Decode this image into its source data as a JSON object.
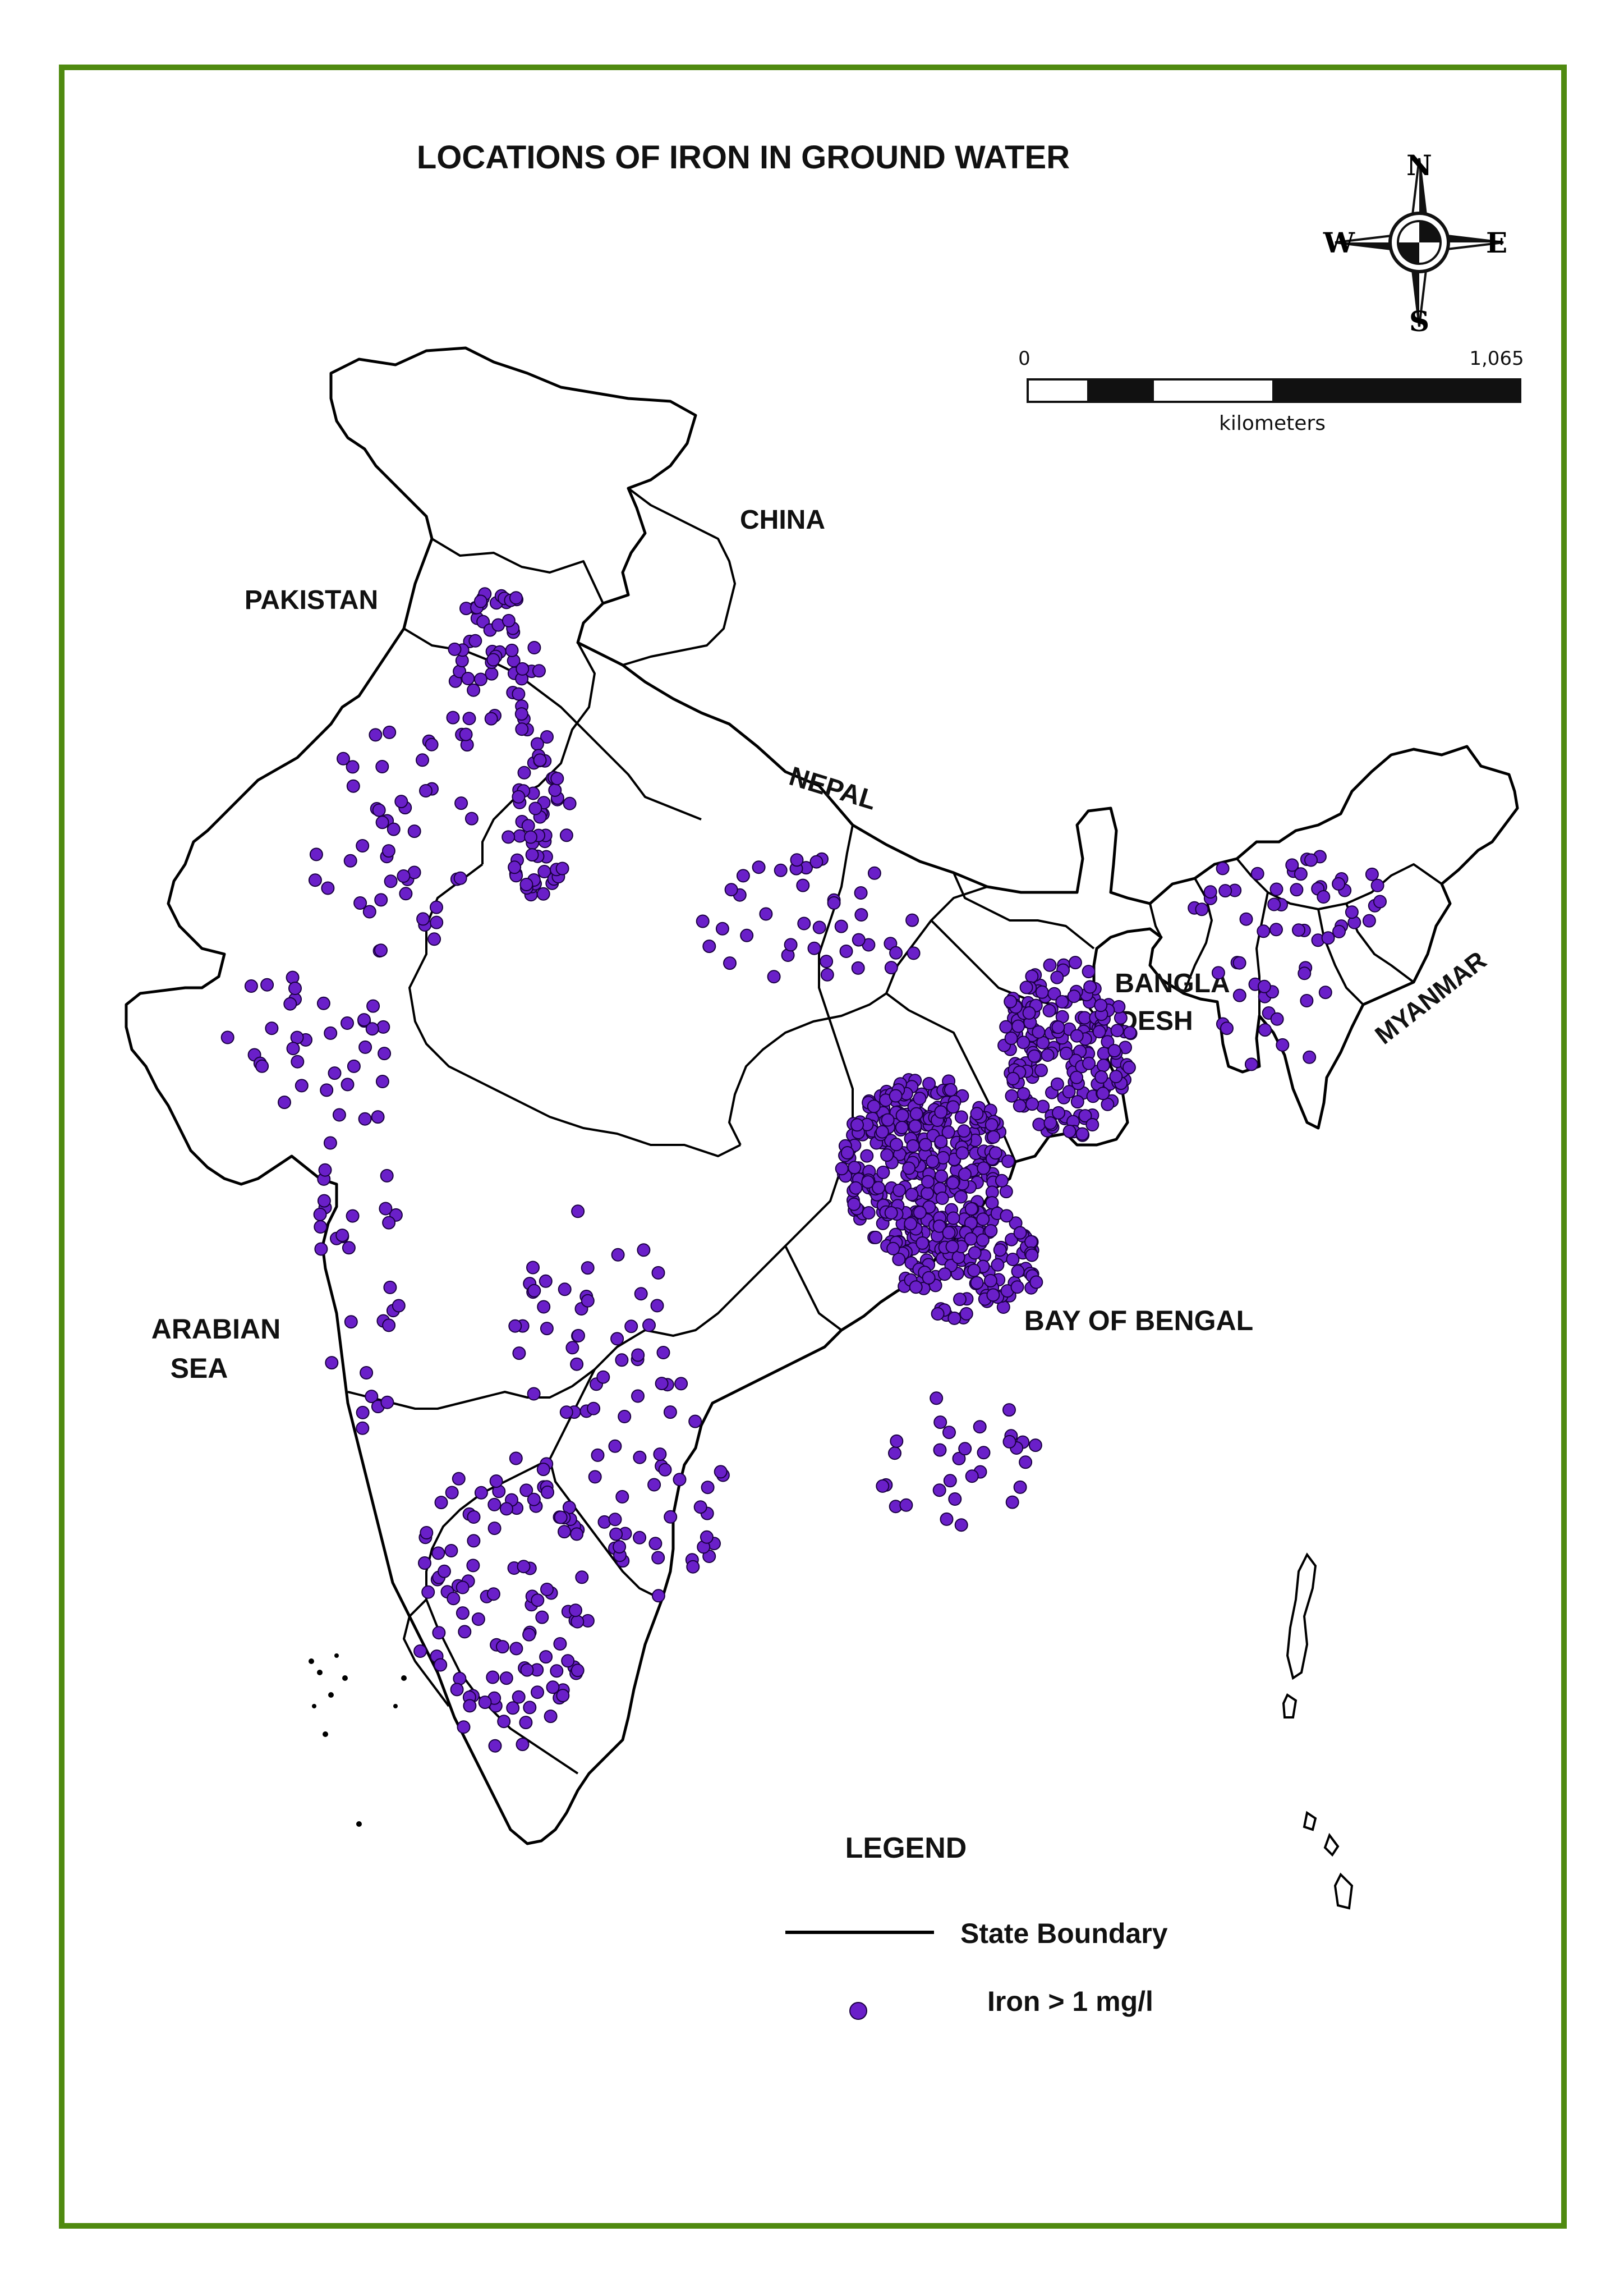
{
  "title": "LOCATIONS OF IRON IN GROUND WATER",
  "compass": {
    "north": "N",
    "south": "S",
    "east": "E",
    "west": "W",
    "icon": "compass-rose-icon"
  },
  "scale_bar": {
    "start": "0",
    "end": "1,065",
    "unit": "kilometers"
  },
  "regions": {
    "china": "CHINA",
    "pakistan": "PAKISTAN",
    "nepal": "NEPAL",
    "bangladesh_line1": "BANGLA",
    "bangladesh_line2": "DESH",
    "myanmar": "MYANMAR",
    "arabian_sea_line1": "ARABIAN",
    "arabian_sea_line2": "SEA",
    "bay_of_bengal": "BAY OF BENGAL"
  },
  "legend": {
    "title": "LEGEND",
    "boundary_label": "State Boundary",
    "point_label": "Iron > 1 mg/l"
  },
  "colors": {
    "frame": "#4f8a10",
    "boundary": "#000000",
    "point_fill": "#6a1fc9",
    "point_stroke": "#1a0040"
  }
}
